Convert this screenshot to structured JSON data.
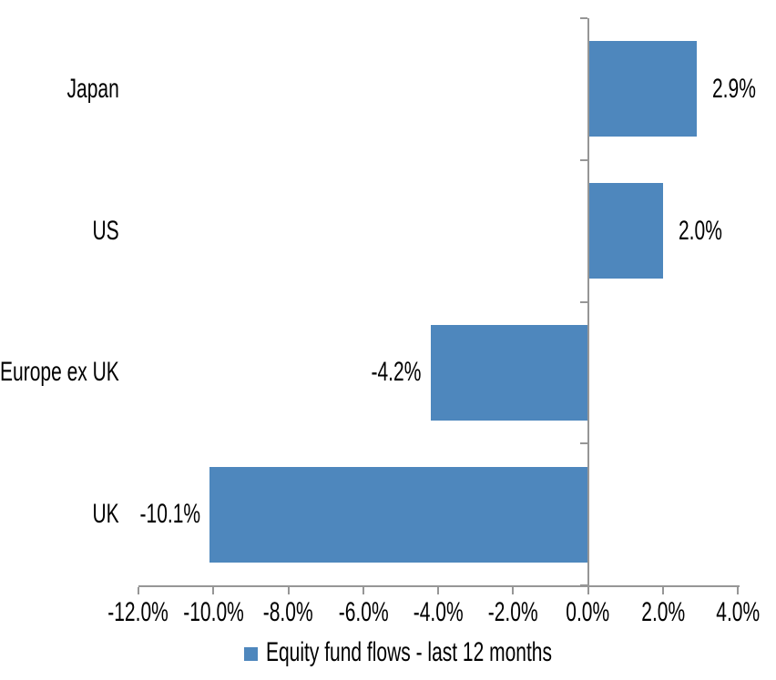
{
  "chart_data": {
    "type": "bar",
    "orientation": "horizontal",
    "series_name": "Equity fund flows - last 12 months",
    "categories": [
      "Japan",
      "US",
      "Europe ex UK",
      "UK"
    ],
    "values": [
      2.9,
      2.0,
      -4.2,
      -10.1
    ],
    "value_labels": [
      "2.9%",
      "2.0%",
      "-4.2%",
      "-10.1%"
    ],
    "xlim": [
      -12,
      4
    ],
    "x_tick_values": [
      -12,
      -10,
      -8,
      -6,
      -4,
      -2,
      0,
      2,
      4
    ],
    "x_tick_labels": [
      "-12.0%",
      "-10.0%",
      "-8.0%",
      "-6.0%",
      "-4.0%",
      "-2.0%",
      "0.0%",
      "2.0%",
      "4.0%"
    ],
    "grid": "off",
    "legend_position": "bottom-center",
    "colors": {
      "bar": "#4E87BD",
      "axis": "#969696",
      "text": "#000000",
      "background": "#FFFFFF"
    }
  }
}
